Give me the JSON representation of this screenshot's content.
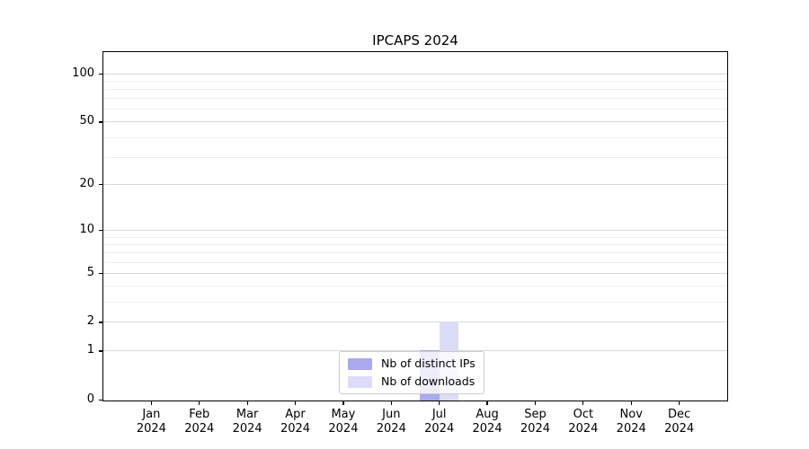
{
  "chart_data": {
    "type": "bar",
    "title": "IPCAPS 2024",
    "categories": [
      "Jan\n2024",
      "Feb\n2024",
      "Mar\n2024",
      "Apr\n2024",
      "May\n2024",
      "Jun\n2024",
      "Jul\n2024",
      "Aug\n2024",
      "Sep\n2024",
      "Oct\n2024",
      "Nov\n2024",
      "Dec\n2024"
    ],
    "series": [
      {
        "name": "Nb of distinct IPs",
        "color": "#aaaaec",
        "values": [
          0,
          0,
          0,
          0,
          0,
          0,
          1,
          0,
          0,
          0,
          0,
          0
        ]
      },
      {
        "name": "Nb of downloads",
        "color": "#dcdcf7",
        "values": [
          0,
          0,
          0,
          0,
          0,
          0,
          2,
          0,
          0,
          0,
          0,
          0
        ]
      }
    ],
    "xlabel": "",
    "ylabel": "",
    "yscale": "log1p",
    "ytick_values": [
      0,
      1,
      2,
      5,
      10,
      20,
      50,
      100
    ],
    "ytick_labels": [
      "0",
      "1",
      "2",
      "5",
      "10",
      "20",
      "50",
      "100"
    ],
    "minor_gridline_values": [
      3,
      4,
      6,
      7,
      8,
      9,
      30,
      40,
      60,
      70,
      80,
      90
    ],
    "ylim": [
      0,
      116
    ],
    "grid": "horizontal",
    "legend_position": "lower center",
    "colors": {
      "major_grid": "#d8d8d8",
      "minor_grid": "#eeeeee",
      "spine": "#000000",
      "legend_border": "#cccccc"
    }
  }
}
